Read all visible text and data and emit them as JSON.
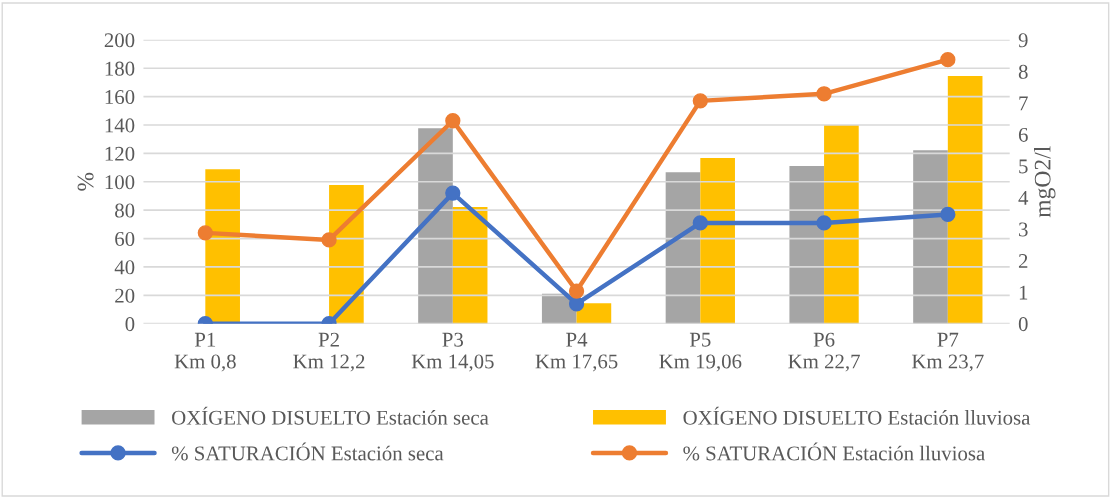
{
  "chart_data": {
    "type": "bar",
    "categories": [
      "P1\nKm 0,8",
      "P2\nKm 12,2",
      "P3\nKm 14,05",
      "P4\nKm 17,65",
      "P5\nKm 19,06",
      "P6\nKm 22,7",
      "P7\nKm 23,7"
    ],
    "ylabel": "%",
    "y2label": "mgO2/l",
    "ylim": [
      0,
      200
    ],
    "yticks": [
      0,
      20,
      40,
      60,
      80,
      100,
      120,
      140,
      160,
      180,
      200
    ],
    "y2lim": [
      0,
      9
    ],
    "y2ticks": [
      0,
      1,
      2,
      3,
      4,
      5,
      6,
      7,
      8,
      9
    ],
    "grid": "y",
    "legend": "bottom",
    "series": [
      {
        "name": "OXÍGENO DISUELTO Estación seca",
        "axis": "y2",
        "color": "#a5a5a5",
        "values": [
          null,
          null,
          6.2,
          0.95,
          4.8,
          5.0,
          5.5
        ]
      },
      {
        "name": "OXÍGENO DISUELTO Estación lluviosa",
        "axis": "y2",
        "color": "#ffc000",
        "values": [
          4.9,
          4.4,
          3.7,
          0.65,
          5.25,
          6.3,
          7.85
        ]
      },
      {
        "name": "% SATURACIÓN Estación seca",
        "type": "line",
        "axis": "y",
        "color": "#4472c4",
        "marker": "circle",
        "values": [
          0,
          0,
          92,
          14,
          71,
          71,
          77
        ]
      },
      {
        "name": "% SATURACIÓN Estación lluviosa",
        "type": "line",
        "axis": "y",
        "color": "#ed7d31",
        "marker": "circle",
        "values": [
          64,
          59,
          143,
          23,
          157,
          162,
          186
        ]
      }
    ]
  }
}
